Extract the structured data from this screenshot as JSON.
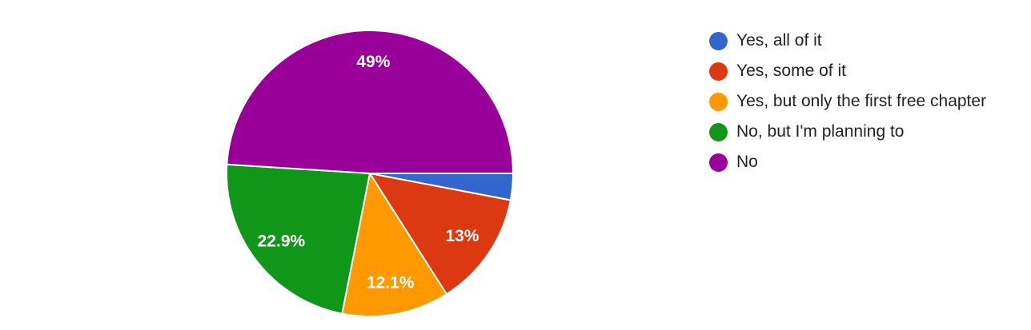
{
  "chart_data": {
    "type": "pie",
    "title": "",
    "legend_position": "right",
    "slices": [
      {
        "label": "Yes, all of it",
        "value": 3.0,
        "display": "",
        "color": "#3366cc"
      },
      {
        "label": "Yes, some of it",
        "value": 13.0,
        "display": "13%",
        "color": "#dc3912"
      },
      {
        "label": "Yes, but only the first free chapter",
        "value": 12.1,
        "display": "12.1%",
        "color": "#ff9900"
      },
      {
        "label": "No, but I'm planning to",
        "value": 22.9,
        "display": "22.9%",
        "color": "#109618"
      },
      {
        "label": "No",
        "value": 49.0,
        "display": "49%",
        "color": "#990099"
      }
    ]
  }
}
